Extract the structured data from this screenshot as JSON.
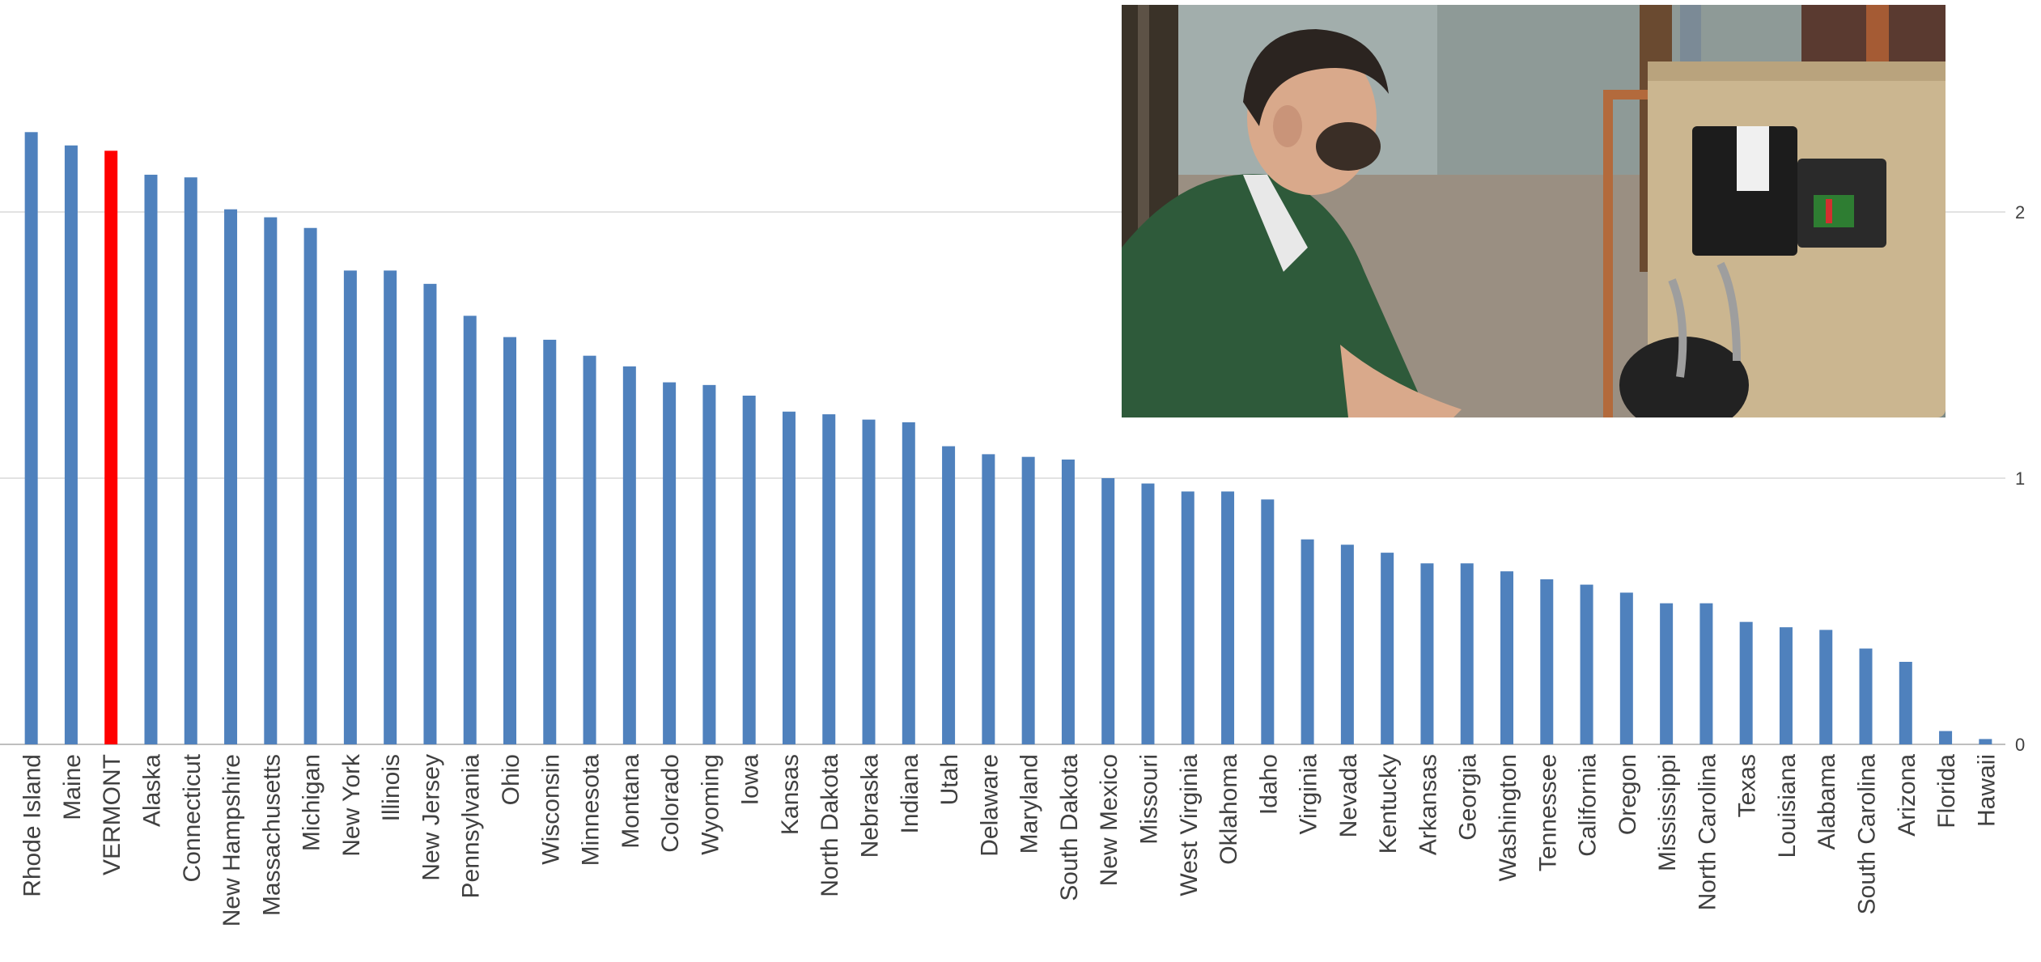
{
  "chart_data": {
    "type": "bar",
    "categories": [
      "Rhode Island",
      "Maine",
      "VERMONT",
      "Alaska",
      "Connecticut",
      "New Hampshire",
      "Massachusetts",
      "Michigan",
      "New York",
      "Illinois",
      "New Jersey",
      "Pennsylvania",
      "Ohio",
      "Wisconsin",
      "Minnesota",
      "Montana",
      "Colorado",
      "Wyoming",
      "Iowa",
      "Kansas",
      "North Dakota",
      "Nebraska",
      "Indiana",
      "Utah",
      "Delaware",
      "Maryland",
      "South Dakota",
      "New Mexico",
      "Missouri",
      "West Virginia",
      "Oklahoma",
      "Idaho",
      "Virginia",
      "Nevada",
      "Kentucky",
      "Arkansas",
      "Georgia",
      "Washington",
      "Tennessee",
      "California",
      "Oregon",
      "Mississippi",
      "North Carolina",
      "Texas",
      "Louisiana",
      "Alabama",
      "South Carolina",
      "Arizona",
      "Florida",
      "Hawaii"
    ],
    "values": [
      2.3,
      2.25,
      2.23,
      2.14,
      2.13,
      2.01,
      1.98,
      1.94,
      1.78,
      1.78,
      1.73,
      1.61,
      1.53,
      1.52,
      1.46,
      1.42,
      1.36,
      1.35,
      1.31,
      1.25,
      1.24,
      1.22,
      1.21,
      1.12,
      1.09,
      1.08,
      1.07,
      1.0,
      0.98,
      0.95,
      0.95,
      0.92,
      0.77,
      0.75,
      0.72,
      0.68,
      0.68,
      0.65,
      0.62,
      0.6,
      0.57,
      0.53,
      0.53,
      0.46,
      0.44,
      0.43,
      0.36,
      0.31,
      0.05,
      0.02
    ],
    "highlight_category": "VERMONT",
    "colors": {
      "bar": "#4f81bd",
      "highlight": "#ff0000",
      "grid": "#d9d9d9",
      "axis": "#bfbfbf",
      "text": "#404040"
    },
    "y_ticks": [
      "0",
      "1",
      "2"
    ],
    "ylim": [
      0,
      2.8
    ],
    "y_axis_side": "right",
    "grid": true,
    "legend": "none",
    "title": "",
    "xlabel": "",
    "ylabel": ""
  },
  "photo": {
    "subject": "technician inspecting a basement boiler burner control",
    "icon": "boiler-technician-photo"
  }
}
